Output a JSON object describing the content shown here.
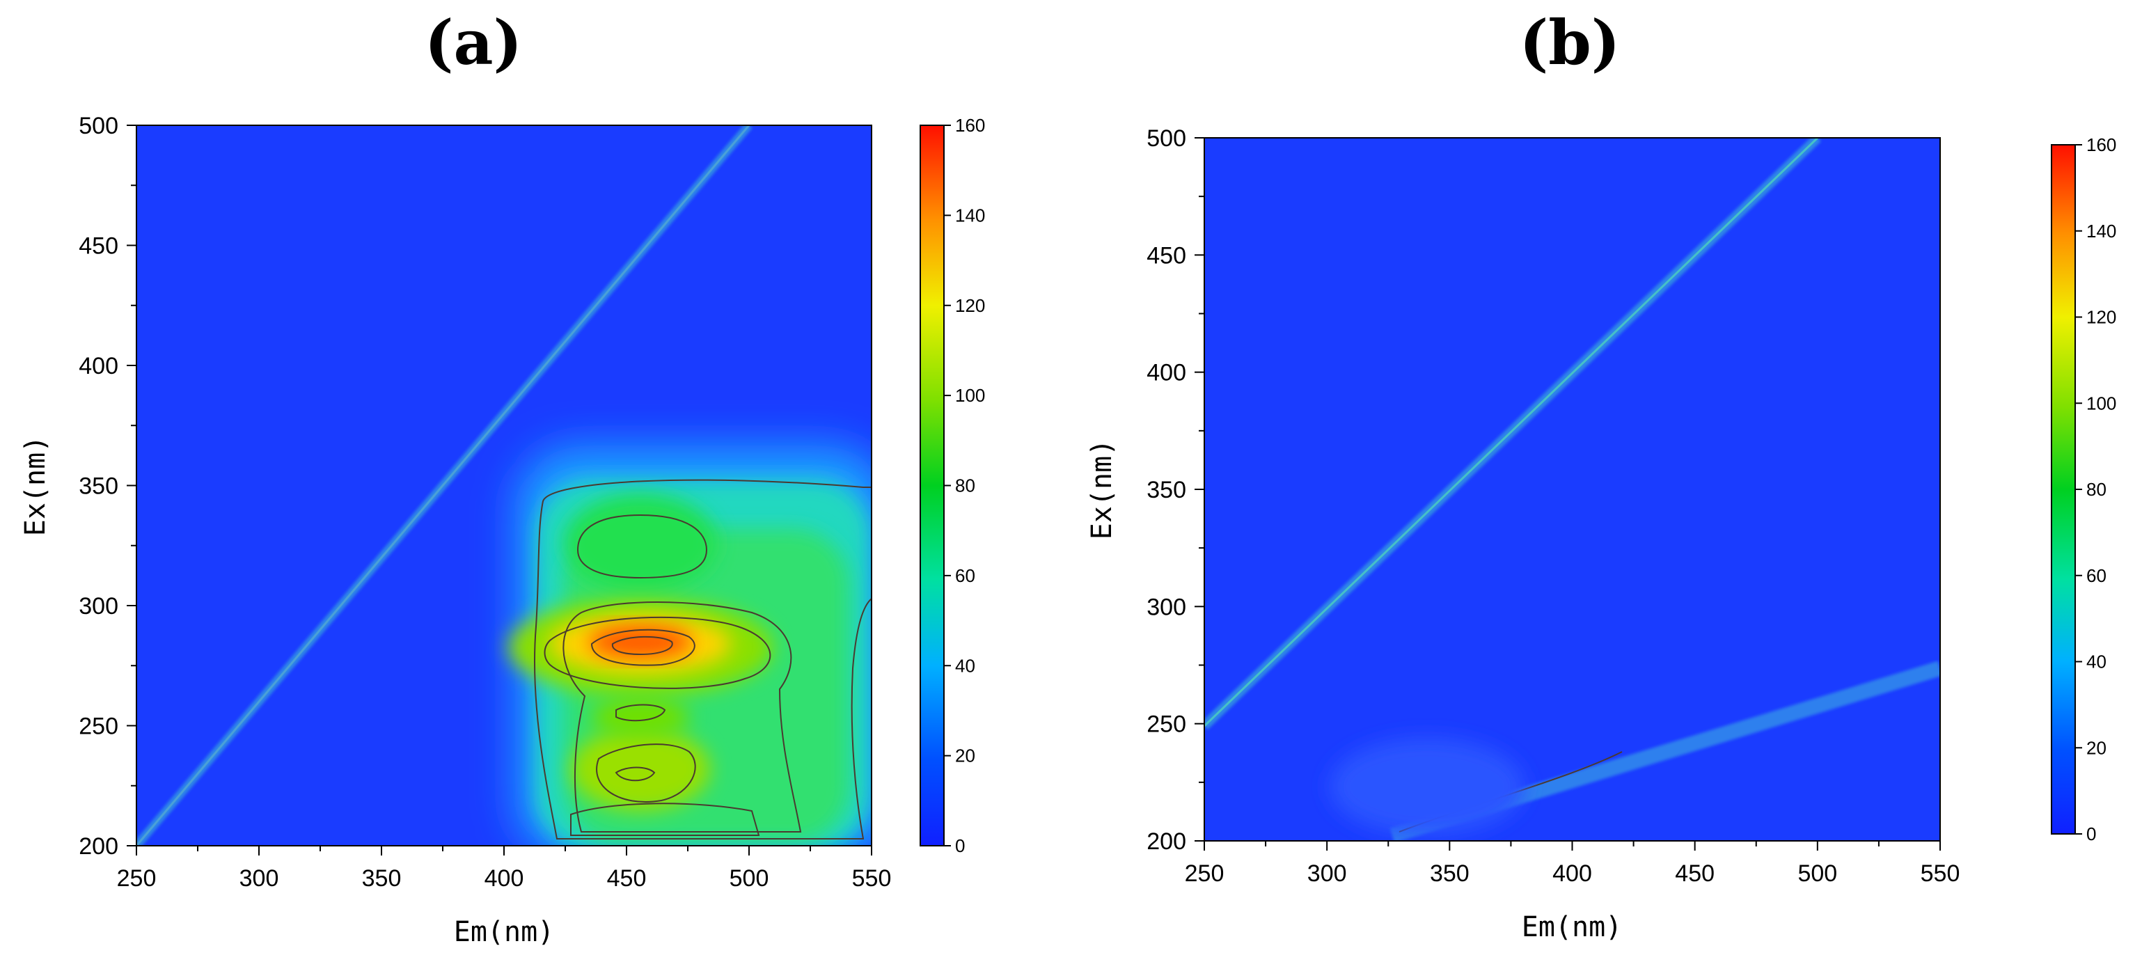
{
  "chart_data": [
    {
      "type": "heatmap",
      "panel_label": "(a)",
      "xlabel": "Em(nm)",
      "ylabel": "Ex(nm)",
      "xlim": [
        250,
        550
      ],
      "ylim": [
        200,
        500
      ],
      "xticks": [
        250,
        300,
        350,
        400,
        450,
        500,
        550
      ],
      "yticks": [
        200,
        250,
        300,
        350,
        400,
        450,
        500
      ],
      "colorbar": {
        "min": 0,
        "max": 160,
        "ticks": [
          0,
          20,
          40,
          60,
          80,
          100,
          120,
          140,
          160
        ]
      },
      "features": [
        {
          "label": "Rayleigh scatter line",
          "from": [
            250,
            250
          ],
          "to": [
            500,
            500
          ],
          "intensity": 25
        },
        {
          "label": "Peak A",
          "em": 463,
          "ex": 285,
          "intensity": 150
        },
        {
          "label": "Peak B",
          "em": 463,
          "ex": 327,
          "intensity": 75
        },
        {
          "label": "Peak C",
          "em": 463,
          "ex": 228,
          "intensity": 100
        },
        {
          "label": "Peak D",
          "em": 463,
          "ex": 255,
          "intensity": 85
        }
      ]
    },
    {
      "type": "heatmap",
      "panel_label": "(b)",
      "xlabel": "Em(nm)",
      "ylabel": "Ex(nm)",
      "xlim": [
        250,
        550
      ],
      "ylim": [
        200,
        500
      ],
      "xticks": [
        250,
        300,
        350,
        400,
        450,
        500,
        550
      ],
      "yticks": [
        200,
        250,
        300,
        350,
        400,
        450,
        500
      ],
      "colorbar": {
        "min": 0,
        "max": 160,
        "ticks": [
          0,
          20,
          40,
          60,
          80,
          100,
          120,
          140,
          160
        ]
      },
      "features": [
        {
          "label": "Rayleigh scatter line",
          "from": [
            250,
            250
          ],
          "to": [
            500,
            500
          ],
          "intensity": 30
        },
        {
          "label": "Second-order scatter",
          "from": [
            410,
            205
          ],
          "to": [
            550,
            275
          ],
          "intensity": 20
        }
      ]
    }
  ]
}
